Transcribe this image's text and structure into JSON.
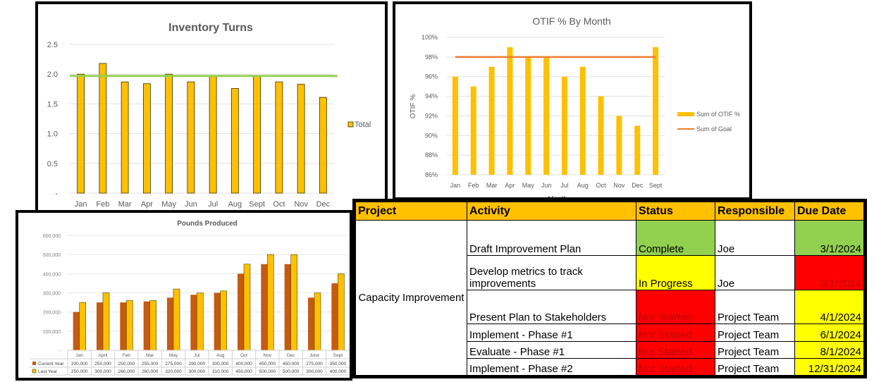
{
  "chart_data": [
    {
      "type": "bar",
      "title": "Inventory Turns",
      "categories": [
        "Jan",
        "Feb",
        "Mar",
        "Apr",
        "May",
        "Jun",
        "Jul",
        "Aug",
        "Sept",
        "Oct",
        "Nov",
        "Dec"
      ],
      "series": [
        {
          "name": "Total",
          "values": [
            2.0,
            2.18,
            1.87,
            1.84,
            2.0,
            1.87,
            1.98,
            1.76,
            1.98,
            1.87,
            1.83,
            1.61
          ]
        }
      ],
      "goal_line": 1.97,
      "ylim": [
        0,
        2.5
      ],
      "yticks": [
        "-",
        "0.5",
        "1.0",
        "1.5",
        "2.0",
        "2.5"
      ],
      "legend": "right",
      "colors": {
        "bar": "#ffc000",
        "goal": "#92d050"
      }
    },
    {
      "type": "bar",
      "title": "OTIF % By Month",
      "xlabel": "Month",
      "ylabel": "OTIF %",
      "categories": [
        "Jan",
        "Feb",
        "Mar",
        "Apr",
        "May",
        "Jun",
        "Jul",
        "Aug",
        "Oct",
        "Nov",
        "Dec",
        "Sept"
      ],
      "series": [
        {
          "name": "Sum of OTIF %",
          "values": [
            96,
            95,
            97,
            99,
            98,
            98,
            96,
            97,
            94,
            92,
            91,
            99
          ]
        },
        {
          "name": "Sum of Goal",
          "type": "line",
          "values": [
            98,
            98,
            98,
            98,
            98,
            98,
            98,
            98,
            98,
            98,
            98,
            98
          ]
        }
      ],
      "ylim": [
        86,
        100
      ],
      "yticks": [
        "86%",
        "88%",
        "90%",
        "92%",
        "94%",
        "96%",
        "98%",
        "100%"
      ],
      "legend": "right",
      "colors": {
        "bar": "#ffc000",
        "goal": "#ed7d31"
      }
    },
    {
      "type": "bar",
      "title": "Pounds Produced",
      "categories": [
        "Jan",
        "April",
        "Feb",
        "Mar",
        "May",
        "Jul",
        "Aug",
        "Oct",
        "Nov",
        "Dec",
        "June",
        "Sept"
      ],
      "series": [
        {
          "name": "Current Year",
          "values": [
            200000,
            250000,
            250000,
            255000,
            275000,
            290000,
            300000,
            400000,
            450000,
            450000,
            275000,
            350000
          ]
        },
        {
          "name": "Last Year",
          "values": [
            250000,
            300000,
            260000,
            260000,
            320000,
            300000,
            310000,
            450000,
            500000,
            500000,
            300000,
            400000
          ]
        }
      ],
      "ylim": [
        0,
        600000
      ],
      "yticks": [
        "-",
        "100,000",
        "200,000",
        "300,000",
        "400,000",
        "500,000",
        "600,000"
      ],
      "legend": "data-table",
      "colors": {
        "current": "#c55a11",
        "last": "#ffc000"
      }
    }
  ],
  "table": {
    "headers": [
      "Project",
      "Activity",
      "Status",
      "Responsible",
      "Due Date"
    ],
    "project": "Capacity Improvement",
    "rows": [
      {
        "activity": "Draft Improvement Plan",
        "status": "Complete",
        "status_color": "#92d050",
        "responsible": "Joe",
        "due": "3/1/2024",
        "due_color": "#92d050"
      },
      {
        "activity": "Develop metrics to track improvements",
        "status": "In Progress",
        "status_color": "#ffff00",
        "responsible": "Joe",
        "due": "3/1/2024",
        "due_color": "#ff0000"
      },
      {
        "activity": "Present Plan to Stakeholders",
        "status": "Not Started",
        "status_color": "#ff0000",
        "responsible": "Project Team",
        "due": "4/1/2024",
        "due_color": "#ffff00"
      },
      {
        "activity": "Implement - Phase #1",
        "status": "Not Started",
        "status_color": "#ff0000",
        "responsible": "Project Team",
        "due": "6/1/2024",
        "due_color": "#ffff00"
      },
      {
        "activity": "Evaluate - Phase #1",
        "status": "Not Started",
        "status_color": "#ff0000",
        "responsible": "Project Team",
        "due": "8/1/2024",
        "due_color": "#ffff00"
      },
      {
        "activity": "Implement - Phase #2",
        "status": "Not Started",
        "status_color": "#ff0000",
        "responsible": "Project Team",
        "due": "12/31/2024",
        "due_color": "#ffff00"
      }
    ]
  }
}
